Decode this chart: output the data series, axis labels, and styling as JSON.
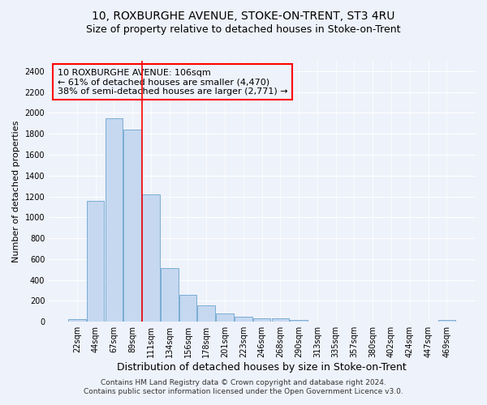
{
  "title1": "10, ROXBURGHE AVENUE, STOKE-ON-TRENT, ST3 4RU",
  "title2": "Size of property relative to detached houses in Stoke-on-Trent",
  "xlabel": "Distribution of detached houses by size in Stoke-on-Trent",
  "ylabel": "Number of detached properties",
  "bar_labels": [
    "22sqm",
    "44sqm",
    "67sqm",
    "89sqm",
    "111sqm",
    "134sqm",
    "156sqm",
    "178sqm",
    "201sqm",
    "223sqm",
    "246sqm",
    "268sqm",
    "290sqm",
    "313sqm",
    "335sqm",
    "357sqm",
    "380sqm",
    "402sqm",
    "424sqm",
    "447sqm",
    "469sqm"
  ],
  "bar_values": [
    25,
    1155,
    1950,
    1840,
    1220,
    510,
    260,
    155,
    80,
    50,
    35,
    35,
    20,
    0,
    0,
    0,
    0,
    0,
    0,
    0,
    15
  ],
  "bar_color": "#c5d8f0",
  "bar_edge_color": "#7aadd4",
  "vline_color": "red",
  "annotation_text": "10 ROXBURGHE AVENUE: 106sqm\n← 61% of detached houses are smaller (4,470)\n38% of semi-detached houses are larger (2,771) →",
  "annotation_box_color": "red",
  "ylim": [
    0,
    2500
  ],
  "yticks": [
    0,
    200,
    400,
    600,
    800,
    1000,
    1200,
    1400,
    1600,
    1800,
    2000,
    2200,
    2400
  ],
  "footer1": "Contains HM Land Registry data © Crown copyright and database right 2024.",
  "footer2": "Contains public sector information licensed under the Open Government Licence v3.0.",
  "bg_color": "#eef2fa",
  "grid_color": "#ffffff",
  "title1_fontsize": 10,
  "title2_fontsize": 9,
  "xlabel_fontsize": 9,
  "ylabel_fontsize": 8,
  "tick_fontsize": 7,
  "annotation_fontsize": 8,
  "footer_fontsize": 6.5
}
